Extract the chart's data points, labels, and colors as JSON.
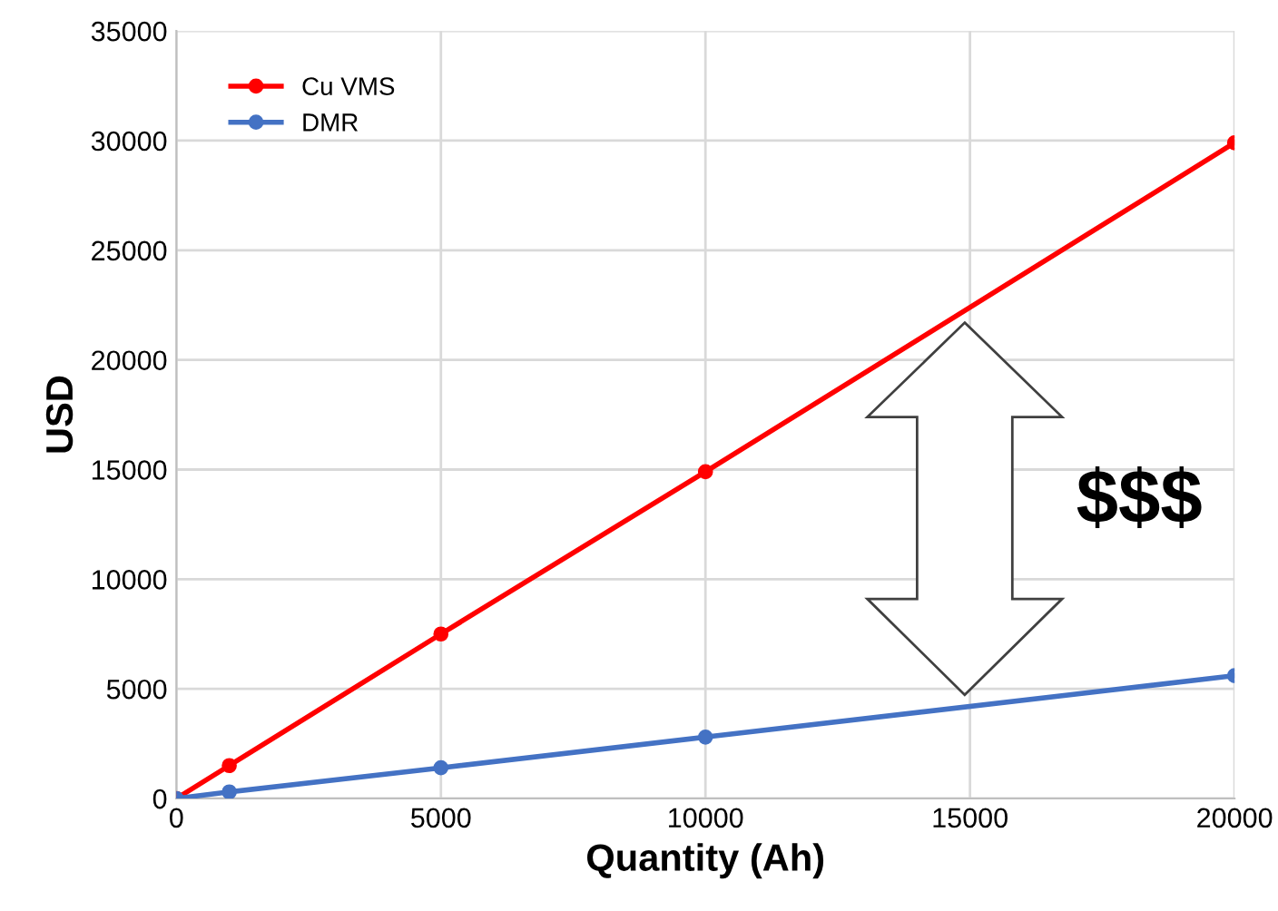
{
  "chart_data": {
    "type": "line",
    "xlabel": "Quantity (Ah)",
    "ylabel": "USD",
    "x": [
      0,
      1000,
      5000,
      10000,
      20000
    ],
    "series": [
      {
        "name": "Cu VMS",
        "color": "#ff0000",
        "values": [
          0,
          1500,
          7500,
          14900,
          29900
        ]
      },
      {
        "name": "DMR",
        "color": "#4472c4",
        "values": [
          0,
          300,
          1400,
          2800,
          5600
        ]
      }
    ],
    "xlim": [
      0,
      20000
    ],
    "xticks": [
      0,
      5000,
      10000,
      15000,
      20000
    ],
    "ylim": [
      0,
      35000
    ],
    "yticks": [
      0,
      5000,
      10000,
      15000,
      20000,
      25000,
      30000,
      35000
    ],
    "grid": true,
    "legend": "top left",
    "marker": "circle",
    "line_style": "solid",
    "annotations": [
      "$$$"
    ]
  }
}
